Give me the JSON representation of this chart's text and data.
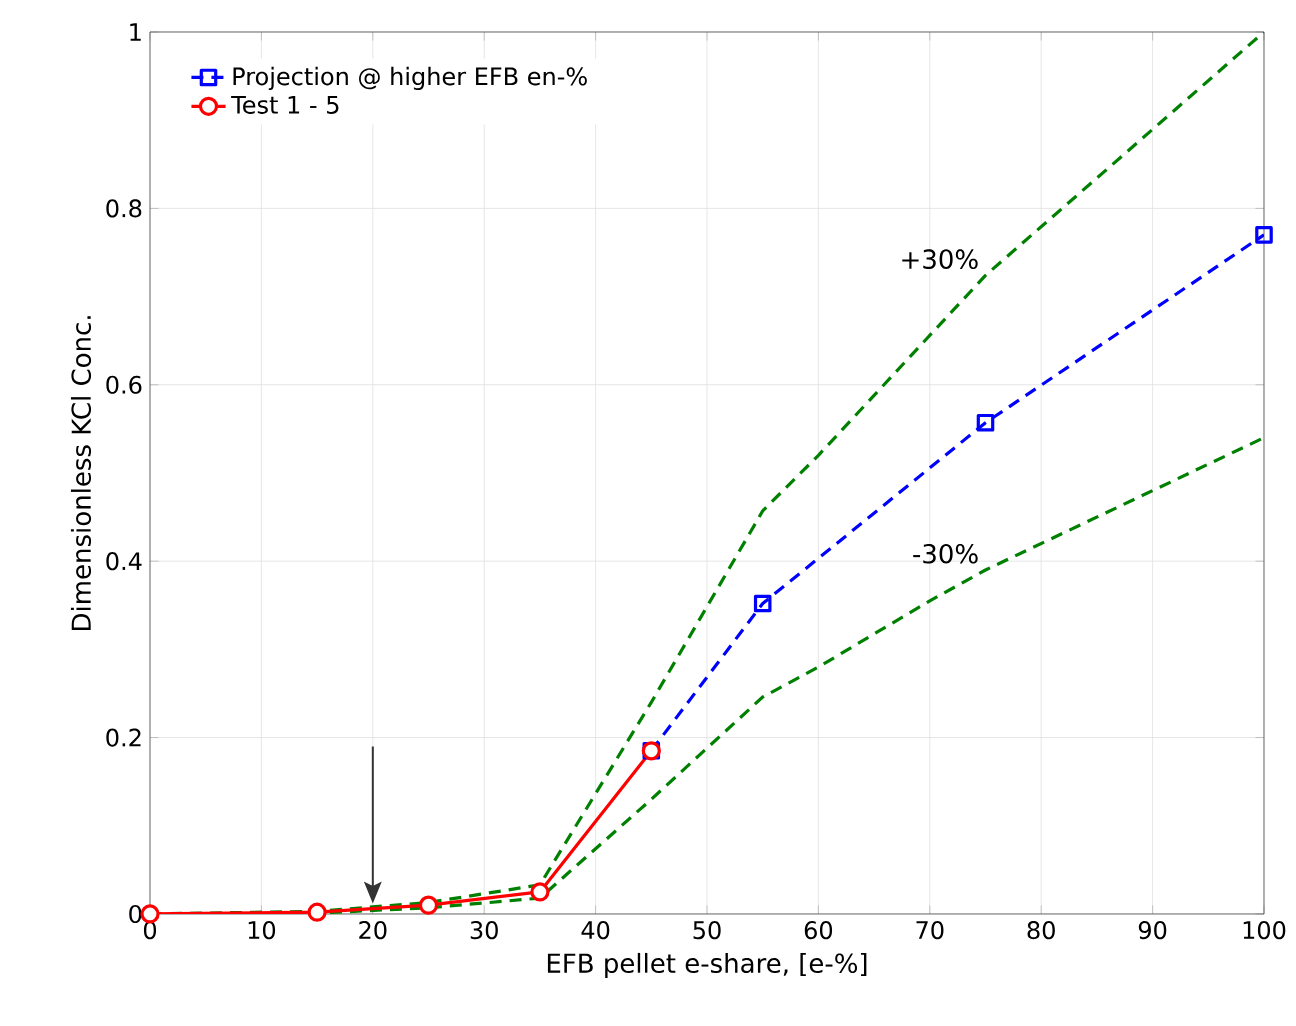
{
  "chart_data": {
    "type": "line",
    "xlabel": "EFB pellet e-share, [e-%]",
    "ylabel": "Dimensionless KCl Conc.",
    "xlim": [
      0,
      100
    ],
    "ylim": [
      0,
      1
    ],
    "xticks": [
      0,
      10,
      20,
      30,
      40,
      50,
      60,
      70,
      80,
      90,
      100
    ],
    "yticks": [
      0,
      0.2,
      0.4,
      0.6,
      0.8,
      1
    ],
    "grid": true,
    "legend": "top left",
    "series": [
      {
        "color": "#008000",
        "line_style": "dashed",
        "marker": "none",
        "x": [
          0,
          15,
          25,
          35,
          45,
          55,
          60,
          75,
          100
        ],
        "values": [
          0,
          0.003,
          0.013,
          0.033,
          0.24,
          0.457,
          0.52,
          0.724,
          1.0
        ]
      },
      {
        "color": "#008000",
        "line_style": "dashed",
        "marker": "none",
        "x": [
          0,
          15,
          25,
          35,
          45,
          55,
          60,
          70,
          75,
          100
        ],
        "values": [
          0,
          0.001,
          0.007,
          0.018,
          0.13,
          0.246,
          0.28,
          0.355,
          0.39,
          0.54
        ]
      },
      {
        "name": "Projection @ higher EFB en-%",
        "color": "#0000ff",
        "line_style": "dashed",
        "marker": "square",
        "x": [
          45,
          55,
          75,
          100
        ],
        "values": [
          0.185,
          0.352,
          0.557,
          0.77
        ]
      },
      {
        "name": "Test 1 - 5",
        "color": "#ff0000",
        "line_style": "solid",
        "marker": "circle",
        "x": [
          0,
          15,
          25,
          35,
          45
        ],
        "values": [
          0,
          0.002,
          0.01,
          0.025,
          0.185
        ]
      }
    ],
    "annotations": [
      {
        "text": "+30%",
        "x": 75,
        "y": 0.724
      },
      {
        "text": "-30%",
        "x": 75,
        "y": 0.39
      }
    ]
  }
}
